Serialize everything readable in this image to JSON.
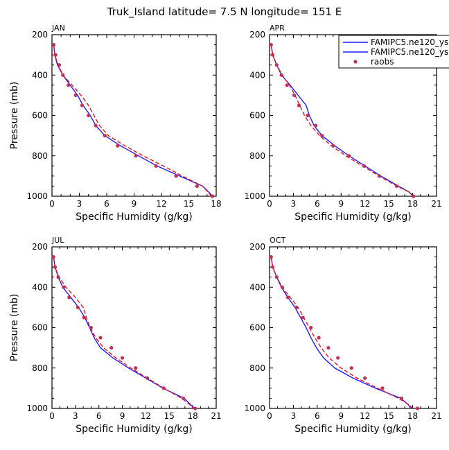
{
  "title": "Truk_Island   latitude= 7.5 N longitude= 151 E",
  "colors": {
    "model1": "#1a1aff",
    "model2": "#e8121b",
    "raobs": "#c2305a"
  },
  "legend": {
    "placement": "top-right of APR panel",
    "entries": [
      {
        "label": "FAMIPC5.ne120_ys",
        "style": "solid-line"
      },
      {
        "label": "FAMIPC5.ne120_ys",
        "style": "dashed-line"
      },
      {
        "label": "raobs",
        "style": "dot"
      }
    ]
  },
  "chart_data": [
    {
      "type": "line",
      "panel_label": "JAN",
      "xlabel": "Specific Humidity (g/kg)",
      "ylabel": "Pressure (mb)",
      "xlim": [
        0,
        18
      ],
      "xticks": [
        0,
        3,
        6,
        9,
        12,
        15,
        18
      ],
      "ylim": [
        1000,
        200
      ],
      "yticks": [
        200,
        400,
        600,
        800,
        1000
      ],
      "y_inverted": true,
      "series": [
        {
          "name": "FAMIPC5.ne120_ys",
          "style": "solid",
          "points": [
            [
              0.2,
              250
            ],
            [
              0.3,
              300
            ],
            [
              0.6,
              350
            ],
            [
              1.2,
              400
            ],
            [
              2.0,
              450
            ],
            [
              2.8,
              500
            ],
            [
              3.4,
              550
            ],
            [
              4.2,
              600
            ],
            [
              4.8,
              650
            ],
            [
              5.8,
              700
            ],
            [
              7.5,
              750
            ],
            [
              9.5,
              800
            ],
            [
              11.5,
              850
            ],
            [
              14.0,
              900
            ],
            [
              16.5,
              950
            ],
            [
              17.2,
              980
            ],
            [
              17.6,
              1000
            ]
          ]
        },
        {
          "name": "FAMIPC5.ne120_ys",
          "style": "dashed",
          "points": [
            [
              0.2,
              250
            ],
            [
              0.3,
              300
            ],
            [
              0.7,
              350
            ],
            [
              1.2,
              400
            ],
            [
              2.2,
              450
            ],
            [
              3.2,
              500
            ],
            [
              4.0,
              550
            ],
            [
              4.6,
              600
            ],
            [
              5.2,
              650
            ],
            [
              6.2,
              700
            ],
            [
              8.0,
              750
            ],
            [
              10.0,
              800
            ],
            [
              12.2,
              850
            ],
            [
              14.3,
              900
            ],
            [
              16.5,
              950
            ],
            [
              17.5,
              1000
            ]
          ]
        },
        {
          "name": "raobs",
          "style": "dots",
          "points": [
            [
              0.2,
              250
            ],
            [
              0.4,
              300
            ],
            [
              0.8,
              350
            ],
            [
              1.2,
              400
            ],
            [
              1.8,
              450
            ],
            [
              2.6,
              500
            ],
            [
              3.3,
              550
            ],
            [
              4.0,
              600
            ],
            [
              4.8,
              650
            ],
            [
              5.8,
              700
            ],
            [
              7.2,
              750
            ],
            [
              9.2,
              800
            ],
            [
              11.4,
              850
            ],
            [
              13.6,
              900
            ],
            [
              15.9,
              950
            ],
            [
              17.6,
              1000
            ]
          ]
        }
      ]
    },
    {
      "type": "line",
      "panel_label": "APR",
      "xlabel": "Specific Humidity (g/kg)",
      "ylabel": "",
      "xlim": [
        0,
        21
      ],
      "xticks": [
        0,
        3,
        6,
        9,
        12,
        15,
        18,
        21
      ],
      "ylim": [
        1000,
        200
      ],
      "yticks": [
        200,
        400,
        600,
        800,
        1000
      ],
      "y_inverted": true,
      "series": [
        {
          "name": "FAMIPC5.ne120_ys",
          "style": "solid",
          "points": [
            [
              0.2,
              250
            ],
            [
              0.4,
              300
            ],
            [
              0.9,
              350
            ],
            [
              1.5,
              400
            ],
            [
              2.6,
              450
            ],
            [
              3.6,
              500
            ],
            [
              4.6,
              550
            ],
            [
              5.0,
              600
            ],
            [
              5.6,
              650
            ],
            [
              6.6,
              700
            ],
            [
              8.2,
              750
            ],
            [
              10.0,
              800
            ],
            [
              12.0,
              850
            ],
            [
              14.0,
              900
            ],
            [
              16.2,
              950
            ],
            [
              17.6,
              980
            ],
            [
              18.0,
              1000
            ]
          ]
        },
        {
          "name": "FAMIPC5.ne120_ys",
          "style": "dashed",
          "points": [
            [
              0.2,
              250
            ],
            [
              0.4,
              300
            ],
            [
              0.9,
              350
            ],
            [
              1.6,
              400
            ],
            [
              2.5,
              450
            ],
            [
              3.2,
              500
            ],
            [
              3.8,
              550
            ],
            [
              4.4,
              600
            ],
            [
              5.2,
              650
            ],
            [
              6.3,
              700
            ],
            [
              7.8,
              750
            ],
            [
              9.6,
              800
            ],
            [
              11.7,
              850
            ],
            [
              13.8,
              900
            ],
            [
              16.0,
              950
            ],
            [
              17.6,
              980
            ],
            [
              18.1,
              1000
            ]
          ]
        },
        {
          "name": "raobs",
          "style": "dots",
          "points": [
            [
              0.2,
              250
            ],
            [
              0.4,
              300
            ],
            [
              0.9,
              350
            ],
            [
              1.5,
              400
            ],
            [
              2.2,
              450
            ],
            [
              3.1,
              500
            ],
            [
              3.7,
              550
            ],
            [
              4.8,
              600
            ],
            [
              5.8,
              650
            ],
            [
              6.6,
              700
            ],
            [
              8.0,
              750
            ],
            [
              10.0,
              800
            ],
            [
              11.9,
              850
            ],
            [
              13.8,
              900
            ],
            [
              16.0,
              950
            ],
            [
              18.1,
              1000
            ]
          ]
        }
      ]
    },
    {
      "type": "line",
      "panel_label": "JUL",
      "xlabel": "Specific Humidity (g/kg)",
      "ylabel": "Pressure (mb)",
      "xlim": [
        0,
        21
      ],
      "xticks": [
        0,
        3,
        6,
        9,
        12,
        15,
        18,
        21
      ],
      "ylim": [
        1000,
        200
      ],
      "yticks": [
        200,
        400,
        600,
        800,
        1000
      ],
      "y_inverted": true,
      "series": [
        {
          "name": "FAMIPC5.ne120_ys",
          "style": "solid",
          "points": [
            [
              0.2,
              250
            ],
            [
              0.4,
              300
            ],
            [
              0.8,
              350
            ],
            [
              1.4,
              400
            ],
            [
              2.4,
              450
            ],
            [
              3.4,
              500
            ],
            [
              4.2,
              550
            ],
            [
              4.8,
              600
            ],
            [
              5.4,
              650
            ],
            [
              6.2,
              700
            ],
            [
              7.8,
              750
            ],
            [
              9.8,
              800
            ],
            [
              12.0,
              850
            ],
            [
              14.2,
              900
            ],
            [
              16.9,
              950
            ],
            [
              17.7,
              980
            ],
            [
              18.2,
              1000
            ]
          ]
        },
        {
          "name": "FAMIPC5.ne120_ys",
          "style": "dashed",
          "points": [
            [
              0.2,
              250
            ],
            [
              0.4,
              300
            ],
            [
              0.9,
              350
            ],
            [
              1.8,
              400
            ],
            [
              3.0,
              450
            ],
            [
              4.0,
              500
            ],
            [
              4.4,
              550
            ],
            [
              4.9,
              600
            ],
            [
              5.6,
              650
            ],
            [
              6.6,
              700
            ],
            [
              8.2,
              750
            ],
            [
              10.1,
              800
            ],
            [
              12.2,
              850
            ],
            [
              14.3,
              900
            ],
            [
              16.6,
              950
            ],
            [
              17.6,
              980
            ],
            [
              18.1,
              1000
            ]
          ]
        },
        {
          "name": "raobs",
          "style": "dots",
          "points": [
            [
              0.2,
              250
            ],
            [
              0.4,
              300
            ],
            [
              0.8,
              350
            ],
            [
              1.5,
              400
            ],
            [
              2.2,
              450
            ],
            [
              3.3,
              500
            ],
            [
              4.1,
              550
            ],
            [
              5.0,
              600
            ],
            [
              6.2,
              650
            ],
            [
              7.6,
              700
            ],
            [
              9.0,
              750
            ],
            [
              10.7,
              800
            ],
            [
              12.2,
              850
            ],
            [
              14.3,
              900
            ],
            [
              16.8,
              950
            ],
            [
              18.3,
              1000
            ]
          ]
        }
      ]
    },
    {
      "type": "line",
      "panel_label": "OCT",
      "xlabel": "Specific Humidity (g/kg)",
      "ylabel": "",
      "xlim": [
        0,
        21
      ],
      "xticks": [
        0,
        3,
        6,
        9,
        12,
        15,
        18,
        21
      ],
      "ylim": [
        1000,
        200
      ],
      "yticks": [
        200,
        400,
        600,
        800,
        1000
      ],
      "y_inverted": true,
      "series": [
        {
          "name": "FAMIPC5.ne120_ys",
          "style": "solid",
          "points": [
            [
              0.2,
              250
            ],
            [
              0.4,
              300
            ],
            [
              0.9,
              350
            ],
            [
              1.5,
              400
            ],
            [
              2.3,
              450
            ],
            [
              3.2,
              500
            ],
            [
              3.9,
              550
            ],
            [
              4.6,
              600
            ],
            [
              5.2,
              650
            ],
            [
              5.9,
              700
            ],
            [
              6.8,
              750
            ],
            [
              8.2,
              800
            ],
            [
              10.5,
              850
            ],
            [
              13.3,
              900
            ],
            [
              16.5,
              950
            ],
            [
              17.4,
              980
            ],
            [
              17.8,
              1000
            ]
          ]
        },
        {
          "name": "FAMIPC5.ne120_ys",
          "style": "dashed",
          "points": [
            [
              0.2,
              250
            ],
            [
              0.4,
              300
            ],
            [
              0.9,
              350
            ],
            [
              1.6,
              400
            ],
            [
              2.6,
              450
            ],
            [
              3.6,
              500
            ],
            [
              4.3,
              550
            ],
            [
              5.0,
              600
            ],
            [
              5.7,
              650
            ],
            [
              6.5,
              700
            ],
            [
              7.5,
              750
            ],
            [
              9.0,
              800
            ],
            [
              11.0,
              850
            ],
            [
              13.6,
              900
            ],
            [
              16.2,
              950
            ],
            [
              17.5,
              980
            ],
            [
              18.0,
              1000
            ]
          ]
        },
        {
          "name": "raobs",
          "style": "dots",
          "points": [
            [
              0.2,
              250
            ],
            [
              0.4,
              300
            ],
            [
              0.9,
              350
            ],
            [
              1.6,
              400
            ],
            [
              2.3,
              450
            ],
            [
              3.4,
              500
            ],
            [
              4.2,
              550
            ],
            [
              5.2,
              600
            ],
            [
              6.2,
              650
            ],
            [
              7.4,
              700
            ],
            [
              8.6,
              750
            ],
            [
              10.3,
              800
            ],
            [
              12.0,
              850
            ],
            [
              14.2,
              900
            ],
            [
              16.6,
              950
            ],
            [
              18.6,
              1000
            ]
          ]
        }
      ]
    }
  ]
}
